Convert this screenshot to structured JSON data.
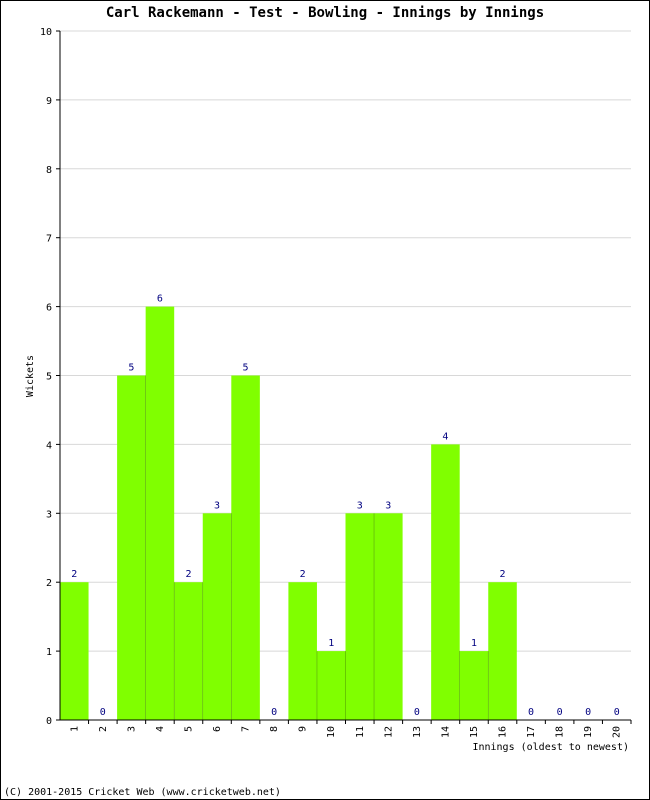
{
  "chart_data": {
    "type": "bar",
    "title": "Carl Rackemann - Test - Bowling - Innings by Innings",
    "xlabel": "Innings (oldest to newest)",
    "ylabel": "Wickets",
    "categories": [
      "1",
      "2",
      "3",
      "4",
      "5",
      "6",
      "7",
      "8",
      "9",
      "10",
      "11",
      "12",
      "13",
      "14",
      "15",
      "16",
      "17",
      "18",
      "19",
      "20"
    ],
    "values": [
      2,
      0,
      5,
      6,
      2,
      3,
      5,
      0,
      2,
      1,
      3,
      3,
      0,
      4,
      1,
      2,
      0,
      0,
      0,
      0
    ],
    "ylim": [
      0,
      10
    ],
    "yticks": [
      "0",
      "1",
      "2",
      "3",
      "4",
      "5",
      "6",
      "7",
      "8",
      "9",
      "10"
    ],
    "grid": true,
    "colors": {
      "bar": "#80ff00",
      "label": "#000080",
      "grid": "#d8d8d8",
      "axis": "#000000"
    }
  },
  "footer": {
    "copyright": "(C) 2001-2015 Cricket Web (www.cricketweb.net)"
  }
}
